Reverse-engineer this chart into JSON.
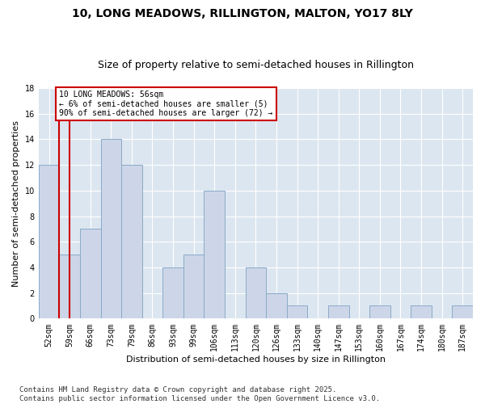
{
  "title": "10, LONG MEADOWS, RILLINGTON, MALTON, YO17 8LY",
  "subtitle": "Size of property relative to semi-detached houses in Rillington",
  "xlabel": "Distribution of semi-detached houses by size in Rillington",
  "ylabel": "Number of semi-detached properties",
  "categories": [
    "52sqm",
    "59sqm",
    "66sqm",
    "73sqm",
    "79sqm",
    "86sqm",
    "93sqm",
    "99sqm",
    "106sqm",
    "113sqm",
    "120sqm",
    "126sqm",
    "133sqm",
    "140sqm",
    "147sqm",
    "153sqm",
    "160sqm",
    "167sqm",
    "174sqm",
    "180sqm",
    "187sqm"
  ],
  "values": [
    12,
    5,
    7,
    14,
    12,
    0,
    4,
    5,
    10,
    0,
    4,
    2,
    1,
    0,
    1,
    0,
    1,
    0,
    1,
    0,
    1
  ],
  "bar_color": "#ccd6e8",
  "bar_edge_color": "#8aaac8",
  "redline_x": 0.5,
  "annotation_text": "10 LONG MEADOWS: 56sqm\n← 6% of semi-detached houses are smaller (5)\n90% of semi-detached houses are larger (72) →",
  "annotation_box_color": "#ffffff",
  "annotation_box_edge_color": "#cc0000",
  "ylim": [
    0,
    18
  ],
  "yticks": [
    0,
    2,
    4,
    6,
    8,
    10,
    12,
    14,
    16,
    18
  ],
  "footer": "Contains HM Land Registry data © Crown copyright and database right 2025.\nContains public sector information licensed under the Open Government Licence v3.0.",
  "fig_background_color": "#ffffff",
  "plot_background_color": "#dce6f0",
  "grid_color": "#ffffff",
  "title_fontsize": 10,
  "subtitle_fontsize": 9,
  "axis_label_fontsize": 8,
  "tick_fontsize": 7,
  "footer_fontsize": 6.5,
  "annotation_fontsize": 7
}
